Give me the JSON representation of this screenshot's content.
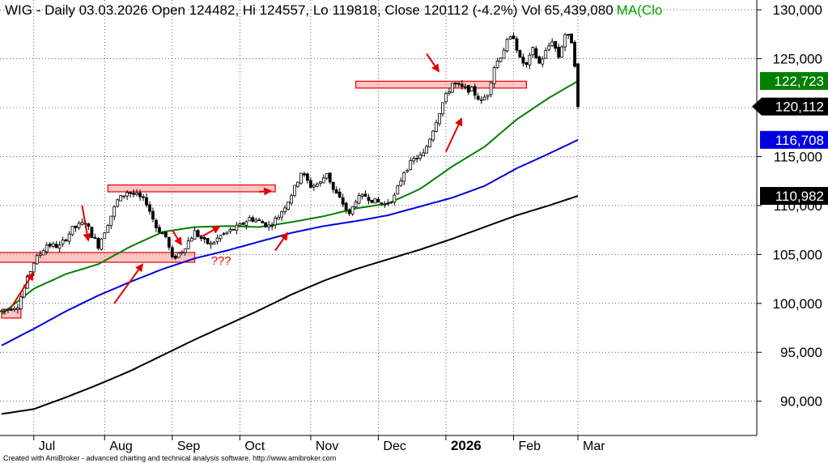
{
  "chart_data": {
    "type": "candlestick",
    "title": {
      "main": "WIG - Daily 03.03.2026 Open 124482, Hi 124557, Lo 119818, Close 120112 (-4.2%) Vol 65,439,080",
      "ma": "MA(Clo"
    },
    "y_axis": {
      "range": [
        86500,
        131000
      ],
      "ticks": [
        {
          "value": 90000,
          "label": "90,000"
        },
        {
          "value": 95000,
          "label": "95,000"
        },
        {
          "value": 100000,
          "label": "100,000"
        },
        {
          "value": 105000,
          "label": "105,000"
        },
        {
          "value": 110000,
          "label": "110,000"
        },
        {
          "value": 115000,
          "label": "115,000"
        },
        {
          "value": 120000,
          "label": "120,000"
        },
        {
          "value": 125000,
          "label": "125,000"
        },
        {
          "value": 130000,
          "label": "130,000"
        }
      ]
    },
    "x_axis": {
      "labels": [
        {
          "label": "Jul",
          "bar": 10,
          "bold": false
        },
        {
          "label": "Aug",
          "bar": 32,
          "bold": false
        },
        {
          "label": "Sep",
          "bar": 53,
          "bold": false
        },
        {
          "label": "Oct",
          "bar": 74,
          "bold": false
        },
        {
          "label": "Nov",
          "bar": 96,
          "bold": false
        },
        {
          "label": "Dec",
          "bar": 117,
          "bold": false
        },
        {
          "label": "2026",
          "bar": 138,
          "bold": true
        },
        {
          "label": "Feb",
          "bar": 159,
          "bold": false
        },
        {
          "label": "Mar",
          "bar": 179,
          "bold": false
        }
      ]
    },
    "grid": true,
    "bars_count": 182,
    "price_path": [
      [
        0,
        99200
      ],
      [
        5,
        99800
      ],
      [
        8,
        102500
      ],
      [
        10,
        104200
      ],
      [
        14,
        106000
      ],
      [
        18,
        105800
      ],
      [
        22,
        107600
      ],
      [
        26,
        108300
      ],
      [
        28,
        107000
      ],
      [
        30,
        105900
      ],
      [
        33,
        108200
      ],
      [
        36,
        110500
      ],
      [
        39,
        111400
      ],
      [
        42,
        111000
      ],
      [
        45,
        110300
      ],
      [
        48,
        107800
      ],
      [
        51,
        106800
      ],
      [
        53,
        104500
      ],
      [
        56,
        105400
      ],
      [
        60,
        107300
      ],
      [
        63,
        106300
      ],
      [
        65,
        106000
      ],
      [
        68,
        106900
      ],
      [
        71,
        107400
      ],
      [
        74,
        107900
      ],
      [
        77,
        108700
      ],
      [
        80,
        108400
      ],
      [
        83,
        107900
      ],
      [
        86,
        108900
      ],
      [
        89,
        110500
      ],
      [
        91,
        111800
      ],
      [
        93,
        113400
      ],
      [
        96,
        112000
      ],
      [
        99,
        112300
      ],
      [
        101,
        113400
      ],
      [
        103,
        111600
      ],
      [
        106,
        110200
      ],
      [
        108,
        109000
      ],
      [
        110,
        110600
      ],
      [
        113,
        111000
      ],
      [
        116,
        110400
      ],
      [
        119,
        110100
      ],
      [
        122,
        110900
      ],
      [
        125,
        113500
      ],
      [
        128,
        114700
      ],
      [
        131,
        115200
      ],
      [
        134,
        117800
      ],
      [
        137,
        120500
      ],
      [
        140,
        122500
      ],
      [
        143,
        122000
      ],
      [
        146,
        121800
      ],
      [
        149,
        120600
      ],
      [
        151,
        121500
      ],
      [
        153,
        124200
      ],
      [
        155,
        125300
      ],
      [
        157,
        126700
      ],
      [
        159,
        127300
      ],
      [
        161,
        124900
      ],
      [
        163,
        124300
      ],
      [
        165,
        125900
      ],
      [
        167,
        124500
      ],
      [
        169,
        125700
      ],
      [
        171,
        126900
      ],
      [
        173,
        125200
      ],
      [
        175,
        127500
      ],
      [
        177,
        126800
      ],
      [
        178,
        124500
      ],
      [
        179,
        120112
      ]
    ],
    "last_candle": {
      "open": 124482,
      "high": 124557,
      "low": 119818,
      "close": 120112
    },
    "moving_averages": [
      {
        "color": "#008000",
        "last_value": 122723,
        "last_label": "122,723",
        "start_value": 98900,
        "start_bar": 0,
        "path": [
          [
            0,
            98900
          ],
          [
            10,
            101500
          ],
          [
            20,
            103000
          ],
          [
            30,
            104000
          ],
          [
            40,
            105800
          ],
          [
            50,
            107300
          ],
          [
            60,
            107800
          ],
          [
            70,
            107900
          ],
          [
            80,
            107800
          ],
          [
            90,
            108300
          ],
          [
            100,
            108900
          ],
          [
            110,
            109700
          ],
          [
            120,
            110200
          ],
          [
            130,
            111700
          ],
          [
            140,
            114000
          ],
          [
            150,
            116000
          ],
          [
            160,
            118800
          ],
          [
            170,
            121000
          ],
          [
            179,
            122723
          ]
        ]
      },
      {
        "color": "#0000e0",
        "last_value": 116708,
        "last_label": "116,708",
        "path": [
          [
            0,
            95700
          ],
          [
            10,
            97400
          ],
          [
            20,
            99200
          ],
          [
            30,
            100800
          ],
          [
            40,
            102200
          ],
          [
            50,
            103500
          ],
          [
            60,
            104600
          ],
          [
            70,
            105400
          ],
          [
            80,
            106300
          ],
          [
            90,
            107200
          ],
          [
            100,
            107900
          ],
          [
            110,
            108400
          ],
          [
            120,
            109000
          ],
          [
            130,
            109900
          ],
          [
            140,
            110800
          ],
          [
            150,
            112000
          ],
          [
            160,
            113800
          ],
          [
            170,
            115300
          ],
          [
            179,
            116708
          ]
        ]
      },
      {
        "color": "#000000",
        "last_value": 110982,
        "last_label": "110,982",
        "path": [
          [
            0,
            88700
          ],
          [
            10,
            89200
          ],
          [
            20,
            90400
          ],
          [
            30,
            91700
          ],
          [
            40,
            93100
          ],
          [
            50,
            94700
          ],
          [
            60,
            96300
          ],
          [
            70,
            97800
          ],
          [
            80,
            99300
          ],
          [
            90,
            100900
          ],
          [
            100,
            102300
          ],
          [
            110,
            103500
          ],
          [
            120,
            104500
          ],
          [
            130,
            105500
          ],
          [
            140,
            106600
          ],
          [
            150,
            107800
          ],
          [
            160,
            109000
          ],
          [
            170,
            110000
          ],
          [
            179,
            110982
          ]
        ]
      }
    ],
    "last_price_label": "120,112",
    "zones": [
      {
        "bar_from": 0,
        "bar_to": 6,
        "low": 98500,
        "high": 99400
      },
      {
        "bar_from": -1,
        "bar_to": 60,
        "low": 104200,
        "high": 105200
      },
      {
        "bar_from": 33,
        "bar_to": 85,
        "low": 111400,
        "high": 112100
      },
      {
        "bar_from": 110,
        "bar_to": 163,
        "low": 122000,
        "high": 122700
      }
    ],
    "annotations": [
      {
        "from": [
          3,
          99600
        ],
        "to": [
          10,
          103200
        ]
      },
      {
        "from": [
          25,
          110000
        ],
        "to": [
          27,
          106300
        ]
      },
      {
        "from": [
          35,
          100000
        ],
        "to": [
          44,
          104100
        ]
      },
      {
        "from": [
          53,
          107500
        ],
        "to": [
          56,
          105900
        ]
      },
      {
        "from": [
          62,
          106800
        ],
        "to": [
          68,
          107900
        ]
      },
      {
        "from": [
          80,
          111400
        ],
        "to": [
          84,
          111500
        ]
      },
      {
        "from": [
          85,
          105400
        ],
        "to": [
          89,
          107300
        ]
      },
      {
        "from": [
          132,
          125500
        ],
        "to": [
          136,
          123600
        ]
      },
      {
        "from": [
          138,
          115500
        ],
        "to": [
          143,
          119000
        ]
      }
    ],
    "question_marks": {
      "text": "???",
      "bar": 65,
      "value": 104800
    },
    "credit": "Created with AmiBroker - advanced charting and technical analysis software. http://www.amibroker.com"
  }
}
